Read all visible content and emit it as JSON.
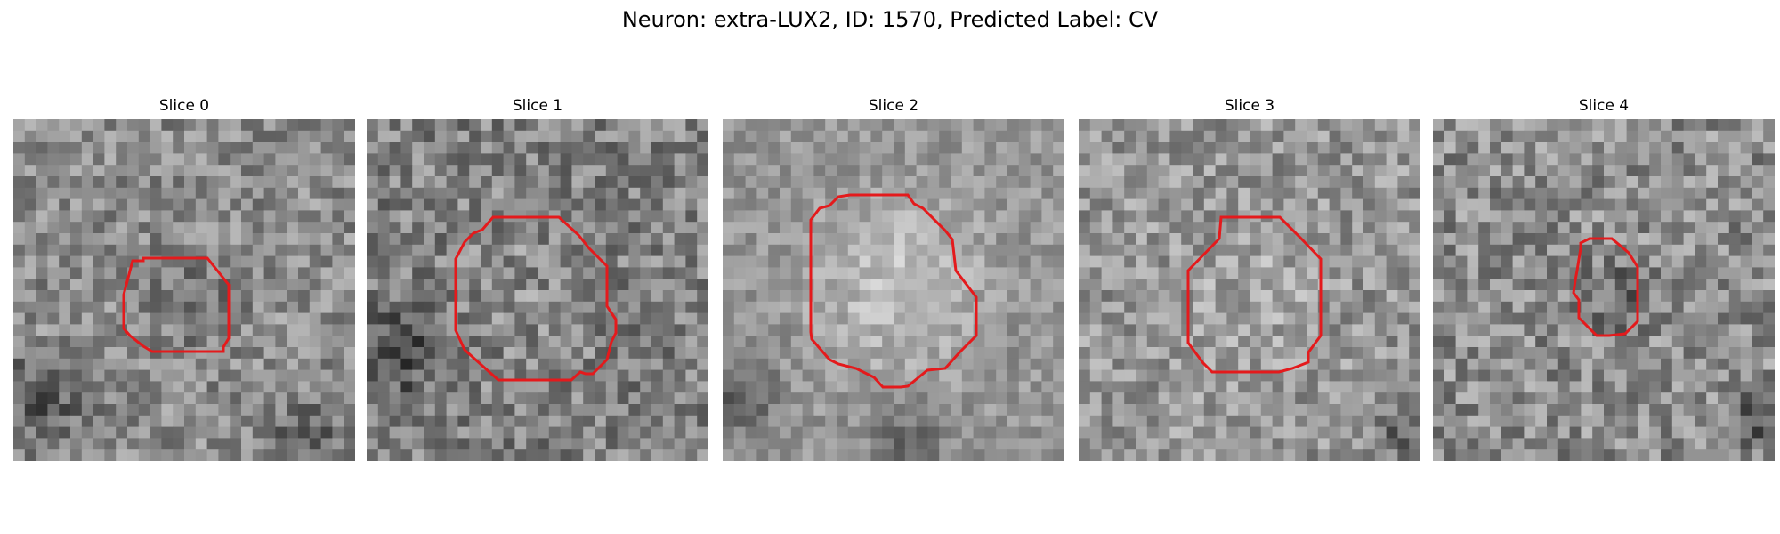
{
  "figure": {
    "title": "Neuron: extra-LUX2, ID: 1570, Predicted Label: CV"
  },
  "panels": [
    {
      "title": "Slice 0"
    },
    {
      "title": "Slice 1"
    },
    {
      "title": "Slice 2"
    },
    {
      "title": "Slice 3"
    },
    {
      "title": "Slice 4"
    }
  ],
  "colors": {
    "contour": "#e41a1c",
    "background": "#ffffff"
  }
}
